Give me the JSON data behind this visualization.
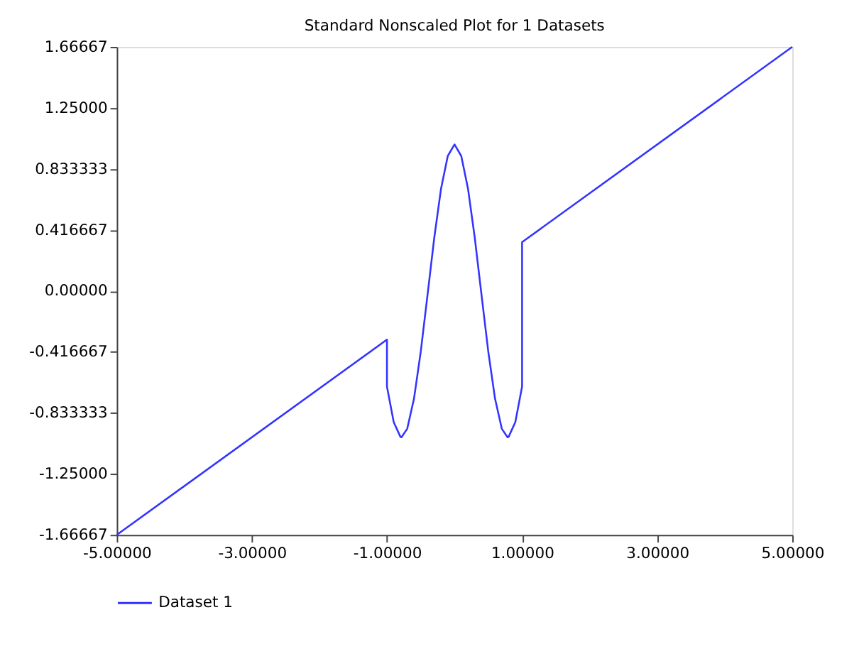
{
  "chart_data": {
    "type": "line",
    "title": "Standard Nonscaled Plot for 1 Datasets",
    "series": [
      {
        "name": "Dataset 1",
        "color": "#3333ff",
        "x": [
          -5,
          -1,
          -1,
          -0.9,
          -0.8,
          -0.785,
          -0.7,
          -0.6,
          -0.5,
          -0.4,
          -0.3,
          -0.2,
          -0.1,
          0,
          0.1,
          0.2,
          0.3,
          0.4,
          0.5,
          0.6,
          0.7,
          0.785,
          0.8,
          0.9,
          1,
          1,
          5
        ],
        "values": [
          -1.66667,
          -0.333,
          -0.654,
          -0.897,
          -0.998,
          -1.0,
          -0.942,
          -0.737,
          -0.416,
          -0.029,
          0.362,
          0.697,
          0.921,
          1.0,
          0.921,
          0.697,
          0.362,
          -0.029,
          -0.416,
          -0.737,
          -0.942,
          -1.0,
          -0.998,
          -0.897,
          -0.654,
          0.333,
          1.66667
        ]
      }
    ],
    "xlim": [
      -5,
      5
    ],
    "xticks": [
      {
        "value": -5,
        "label": "-5.00000"
      },
      {
        "value": -3,
        "label": "-3.00000"
      },
      {
        "value": -1,
        "label": "-1.00000"
      },
      {
        "value": 1,
        "label": "1.00000"
      },
      {
        "value": 3,
        "label": "3.00000"
      },
      {
        "value": 5,
        "label": "5.00000"
      }
    ],
    "ylim": [
      -1.66667,
      1.66667
    ],
    "yticks": [
      -1.66667,
      {
        "value": -1.25,
        "label": "-1.25000"
      },
      -0.833333,
      -0.416667,
      {
        "value": 0,
        "label": "0.00000"
      },
      0.416667,
      0.833333,
      {
        "value": 1.25,
        "label": "1.25000"
      },
      1.66667
    ],
    "grid": false,
    "legend": "bottom",
    "marker": "none",
    "line_style": "solid"
  }
}
